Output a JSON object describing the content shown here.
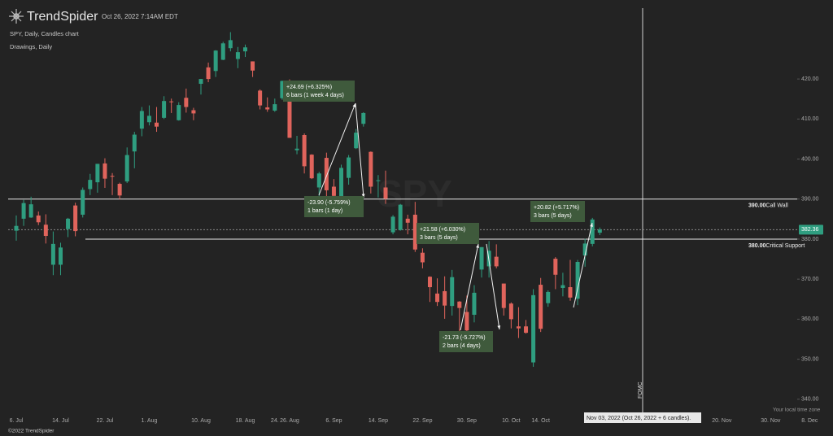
{
  "header": {
    "brand": "TrendSpider",
    "timestamp": "Oct 26, 2022 7:14AM EDT",
    "chart_label": "SPY, Daily, Candles chart",
    "drawings_label": "Drawings, Daily",
    "watermark": "SPY",
    "copyright": "©2022 TrendSpider",
    "timezone_note": "Your local time zone"
  },
  "chart_data": {
    "type": "candlestick",
    "x": [
      "6. Jul",
      "7. Jul",
      "8. Jul",
      "11. Jul",
      "12. Jul",
      "13. Jul",
      "14. Jul",
      "15. Jul",
      "18. Jul",
      "19. Jul",
      "20. Jul",
      "21. Jul",
      "22. Jul",
      "25. Jul",
      "26. Jul",
      "27. Jul",
      "28. Jul",
      "29. Jul",
      "1. Aug",
      "2. Aug",
      "3. Aug",
      "4. Aug",
      "5. Aug",
      "8. Aug",
      "9. Aug",
      "10. Aug",
      "11. Aug",
      "12. Aug",
      "15. Aug",
      "16. Aug",
      "17. Aug",
      "18. Aug",
      "19. Aug",
      "22. Aug",
      "23. Aug",
      "24. Aug",
      "25. Aug",
      "26. Aug",
      "29. Aug",
      "30. Aug",
      "31. Aug",
      "1. Sep",
      "2. Sep",
      "6. Sep",
      "7. Sep",
      "8. Sep",
      "9. Sep",
      "12. Sep",
      "13. Sep",
      "14. Sep",
      "15. Sep",
      "16. Sep",
      "19. Sep",
      "20. Sep",
      "21. Sep",
      "22. Sep",
      "23. Sep",
      "26. Sep",
      "27. Sep",
      "28. Sep",
      "29. Sep",
      "30. Sep",
      "3. Oct",
      "4. Oct",
      "5. Oct",
      "6. Oct",
      "7. Oct",
      "10. Oct",
      "11. Oct",
      "12. Oct",
      "13. Oct",
      "14. Oct",
      "17. Oct",
      "18. Oct",
      "19. Oct",
      "20. Oct",
      "21. Oct",
      "24. Oct",
      "25. Oct",
      "26. Oct"
    ],
    "open": [
      382.1,
      385.1,
      385.4,
      385.9,
      383.6,
      373.6,
      373.6,
      382.5,
      388.4,
      386.1,
      392.5,
      394.2,
      398.9,
      395.8,
      393.8,
      394.4,
      401.9,
      407.6,
      409.2,
      409.1,
      410.3,
      414.4,
      409.7,
      415.3,
      412.2,
      418.8,
      422.9,
      422.0,
      424.8,
      427.7,
      425.0,
      426.9,
      424.4,
      417.1,
      412.9,
      412.1,
      415.2,
      419.4,
      402.2,
      406.0,
      401.1,
      392.9,
      400.3,
      393.1,
      390.4,
      395.3,
      402.7,
      408.8,
      401.8,
      394.5,
      392.9,
      381.7,
      382.3,
      385.1,
      386.1,
      376.6,
      370.6,
      366.4,
      367.0,
      363.3,
      364.4,
      361.8,
      361.1,
      372.4,
      373.2,
      375.6,
      368.9,
      363.9,
      358.2,
      358.2,
      349.2,
      368.6,
      364.0,
      375.1,
      367.8,
      368.0,
      365.1,
      375.9,
      378.8,
      381.6
    ],
    "high": [
      385.9,
      389.8,
      390.6,
      386.9,
      386.2,
      381.9,
      379.1,
      385.3,
      389.1,
      392.9,
      396.3,
      398.8,
      400.2,
      396.5,
      394.1,
      402.9,
      406.8,
      413.0,
      413.4,
      413.0,
      415.7,
      415.1,
      414.2,
      417.6,
      412.8,
      420.0,
      424.1,
      427.2,
      429.3,
      431.7,
      428.0,
      428.6,
      424.4,
      417.4,
      415.4,
      415.1,
      419.6,
      419.9,
      405.8,
      406.4,
      401.2,
      396.8,
      401.6,
      395.0,
      398.6,
      401.0,
      407.5,
      411.7,
      401.9,
      396.0,
      397.1,
      386.0,
      388.8,
      386.1,
      389.3,
      377.7,
      370.7,
      370.2,
      370.7,
      372.3,
      364.5,
      365.9,
      368.5,
      378.0,
      379.5,
      378.7,
      368.9,
      364.2,
      363.0,
      359.8,
      367.5,
      370.3,
      367.2,
      375.5,
      371.6,
      374.8,
      374.8,
      380.1,
      385.3,
      382.9
    ],
    "low": [
      379.6,
      383.3,
      385.3,
      383.5,
      378.9,
      371.0,
      371.0,
      380.5,
      380.7,
      385.4,
      391.0,
      391.6,
      392.8,
      391.0,
      389.9,
      394.0,
      397.7,
      405.7,
      408.4,
      406.8,
      410.0,
      411.5,
      409.6,
      411.6,
      409.7,
      416.1,
      419.2,
      420.5,
      424.7,
      426.9,
      422.7,
      425.5,
      420.5,
      412.4,
      411.8,
      411.8,
      414.8,
      405.3,
      401.2,
      396.4,
      395.0,
      390.0,
      390.3,
      388.4,
      390.2,
      393.6,
      402.5,
      408.1,
      391.4,
      390.4,
      388.8,
      381.2,
      382.1,
      381.2,
      376.8,
      372.7,
      364.3,
      363.3,
      360.1,
      360.9,
      356.6,
      357.0,
      359.2,
      370.4,
      370.4,
      372.7,
      360.9,
      357.7,
      355.3,
      356.4,
      348.1,
      356.8,
      363.1,
      367.5,
      365.7,
      364.6,
      363.5,
      373.1,
      378.2,
      381.0
    ],
    "close": [
      383.3,
      389.0,
      388.7,
      384.2,
      380.8,
      378.8,
      377.9,
      385.1,
      382.0,
      392.3,
      394.8,
      398.8,
      395.1,
      395.6,
      390.9,
      401.0,
      406.1,
      412.0,
      410.8,
      408.1,
      414.5,
      414.2,
      413.5,
      413.0,
      411.4,
      420.0,
      420.0,
      427.1,
      428.9,
      429.7,
      426.7,
      427.9,
      422.1,
      413.4,
      412.4,
      413.7,
      419.5,
      405.3,
      402.6,
      398.2,
      395.2,
      396.4,
      392.2,
      390.8,
      397.8,
      400.4,
      406.6,
      411.5,
      393.1,
      394.7,
      390.1,
      385.6,
      388.6,
      384.1,
      377.4,
      374.2,
      368.0,
      364.3,
      363.4,
      370.5,
      362.8,
      357.2,
      366.6,
      378.0,
      377.1,
      373.2,
      362.8,
      360.0,
      357.7,
      356.6,
      366.0,
      357.6,
      366.8,
      371.1,
      368.5,
      365.4,
      374.3,
      378.9,
      384.9,
      382.4
    ],
    "up_color": "#2f9e80",
    "down_color": "#e0645c",
    "ylim": [
      336.1,
      437.7
    ],
    "yticks": [
      {
        "value": 340,
        "label": "340.00"
      },
      {
        "value": 350,
        "label": "350.00"
      },
      {
        "value": 360,
        "label": "360.00"
      },
      {
        "value": 370,
        "label": "370.00"
      },
      {
        "value": 380,
        "label": "380.00"
      },
      {
        "value": 390,
        "label": "390.00"
      },
      {
        "value": 400,
        "label": "400.00"
      },
      {
        "value": 410,
        "label": "410.00"
      },
      {
        "value": 420,
        "label": "420.00"
      }
    ],
    "xticks": [
      "6. Jul",
      "14. Jul",
      "22. Jul",
      "1. Aug",
      "10. Aug",
      "18. Aug",
      "26. Aug",
      "6. Sep",
      "14. Sep",
      "22. Sep",
      "30. Sep",
      "10. Oct",
      "14. Oct",
      "24.",
      "20. Nov",
      "30. Nov",
      "8. Dec"
    ],
    "levels": [
      {
        "value": 390,
        "label": "390.00",
        "name": "Call Wall"
      },
      {
        "value": 380,
        "label": "380.00",
        "name": "Critical Support"
      }
    ],
    "last_price": 382.36,
    "event": "FOMC",
    "crosshair_label": "Nov 03, 2022 (Oct 26, 2022 + 6 candles).",
    "annotations": [
      {
        "change": "+24.69 (+6.325%)",
        "span": "6 bars (1 week 4 days)"
      },
      {
        "change": "-23.90 (-5.759%)",
        "span": "1 bars (1 day)"
      },
      {
        "change": "+21.58 (+6.030%)",
        "span": "3 bars (5 days)"
      },
      {
        "change": "-21.73 (-5.727%)",
        "span": "2 bars (4 days)"
      },
      {
        "change": "+20.82 (+5.717%)",
        "span": "3 bars (5 days)"
      }
    ]
  }
}
